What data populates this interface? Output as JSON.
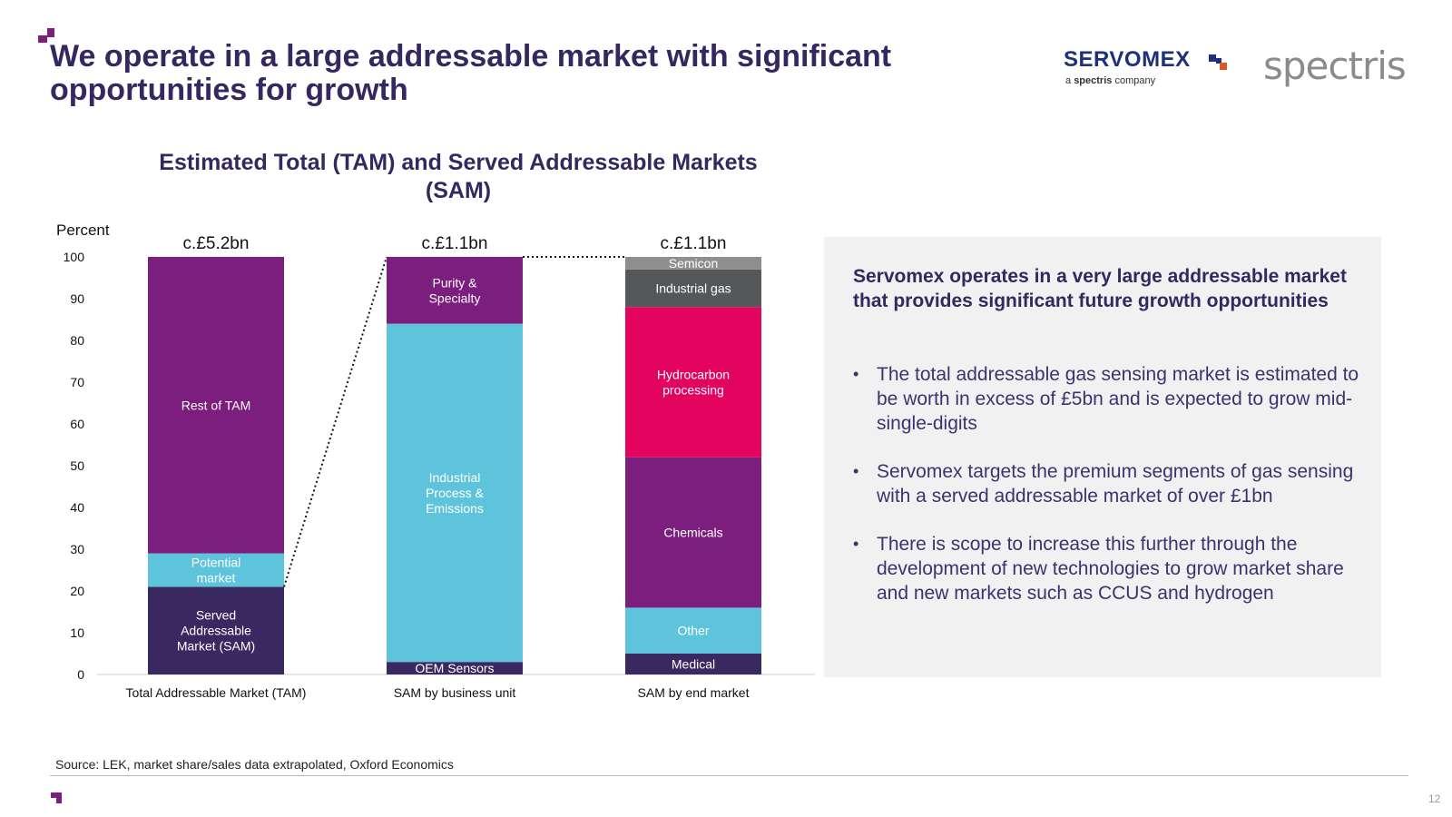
{
  "slide": {
    "title": "We operate in a large addressable market with significant opportunities for growth",
    "source": "Source: LEK, market share/sales data extrapolated, Oxford Economics",
    "page_number": "12"
  },
  "logos": {
    "servomex_word": "SERVOMEX",
    "servomex_sub_prefix": "a ",
    "servomex_sub_brand": "spectris",
    "servomex_sub_suffix": " company",
    "spectris_word": "spectris"
  },
  "colors": {
    "title": "#35275f",
    "accent_purple": "#7b1e7e",
    "dark_navy": "#3a2860",
    "cyan": "#5ec4dc",
    "crimson": "#e2045e",
    "dark_grey": "#555759",
    "light_grey": "#8e8e8e"
  },
  "chart_data": {
    "type": "bar",
    "stacked": true,
    "title": "Estimated Total (TAM) and Served Addressable Markets (SAM)",
    "ylabel": "Percent",
    "ylim": [
      0,
      100
    ],
    "yticks": [
      0,
      10,
      20,
      30,
      40,
      50,
      60,
      70,
      80,
      90,
      100
    ],
    "grid": false,
    "connectors": "dotted lines from SAM segment of TAM bar to full SAM by business unit bar",
    "bars": [
      {
        "category": "Total Addressable Market (TAM)",
        "total_label": "c.£5.2bn",
        "segments": [
          {
            "name": "Served Addressable Market (SAM)",
            "lines": [
              "Served",
              "Addressable",
              "Market (SAM)"
            ],
            "value": 21,
            "color": "#3a2860"
          },
          {
            "name": "Potential market",
            "lines": [
              "Potential",
              "market"
            ],
            "value": 8,
            "color": "#5ec4dc"
          },
          {
            "name": "Rest of TAM",
            "lines": [
              "Rest of TAM"
            ],
            "value": 71,
            "color": "#7b1e7e"
          }
        ]
      },
      {
        "category": "SAM by business unit",
        "total_label": "c.£1.1bn",
        "segments": [
          {
            "name": "OEM Sensors",
            "lines": [
              "OEM Sensors"
            ],
            "value": 3,
            "color": "#3a2860"
          },
          {
            "name": "Industrial Process & Emissions",
            "lines": [
              "Industrial",
              "Process &",
              "Emissions"
            ],
            "value": 81,
            "color": "#5ec4dc"
          },
          {
            "name": "Purity & Specialty",
            "lines": [
              "Purity &",
              "Specialty"
            ],
            "value": 16,
            "color": "#7b1e7e"
          }
        ]
      },
      {
        "category": "SAM by end market",
        "total_label": "c.£1.1bn",
        "segments": [
          {
            "name": "Medical",
            "lines": [
              "Medical"
            ],
            "value": 5,
            "color": "#3a2860"
          },
          {
            "name": "Other",
            "lines": [
              "Other"
            ],
            "value": 11,
            "color": "#5ec4dc"
          },
          {
            "name": "Chemicals",
            "lines": [
              "Chemicals"
            ],
            "value": 36,
            "color": "#7b1e7e"
          },
          {
            "name": "Hydrocarbon processing",
            "lines": [
              "Hydrocarbon",
              "processing"
            ],
            "value": 36,
            "color": "#e2045e"
          },
          {
            "name": "Industrial gas",
            "lines": [
              "Industrial gas"
            ],
            "value": 9,
            "color": "#555759"
          },
          {
            "name": "Semicon",
            "lines": [
              "Semicon"
            ],
            "value": 3,
            "color": "#8e8e8e"
          }
        ]
      }
    ]
  },
  "panel": {
    "heading": "Servomex operates in a very large addressable market that provides significant future growth opportunities",
    "bullet_char": "•",
    "bullets": [
      "The total addressable gas sensing market is estimated to be worth in excess of £5bn and is expected to grow mid-single-digits",
      "Servomex targets the premium segments of gas sensing with a served addressable market of over £1bn",
      "There is scope to increase this further through the development of new technologies to grow market share and new markets such as CCUS and hydrogen"
    ]
  }
}
